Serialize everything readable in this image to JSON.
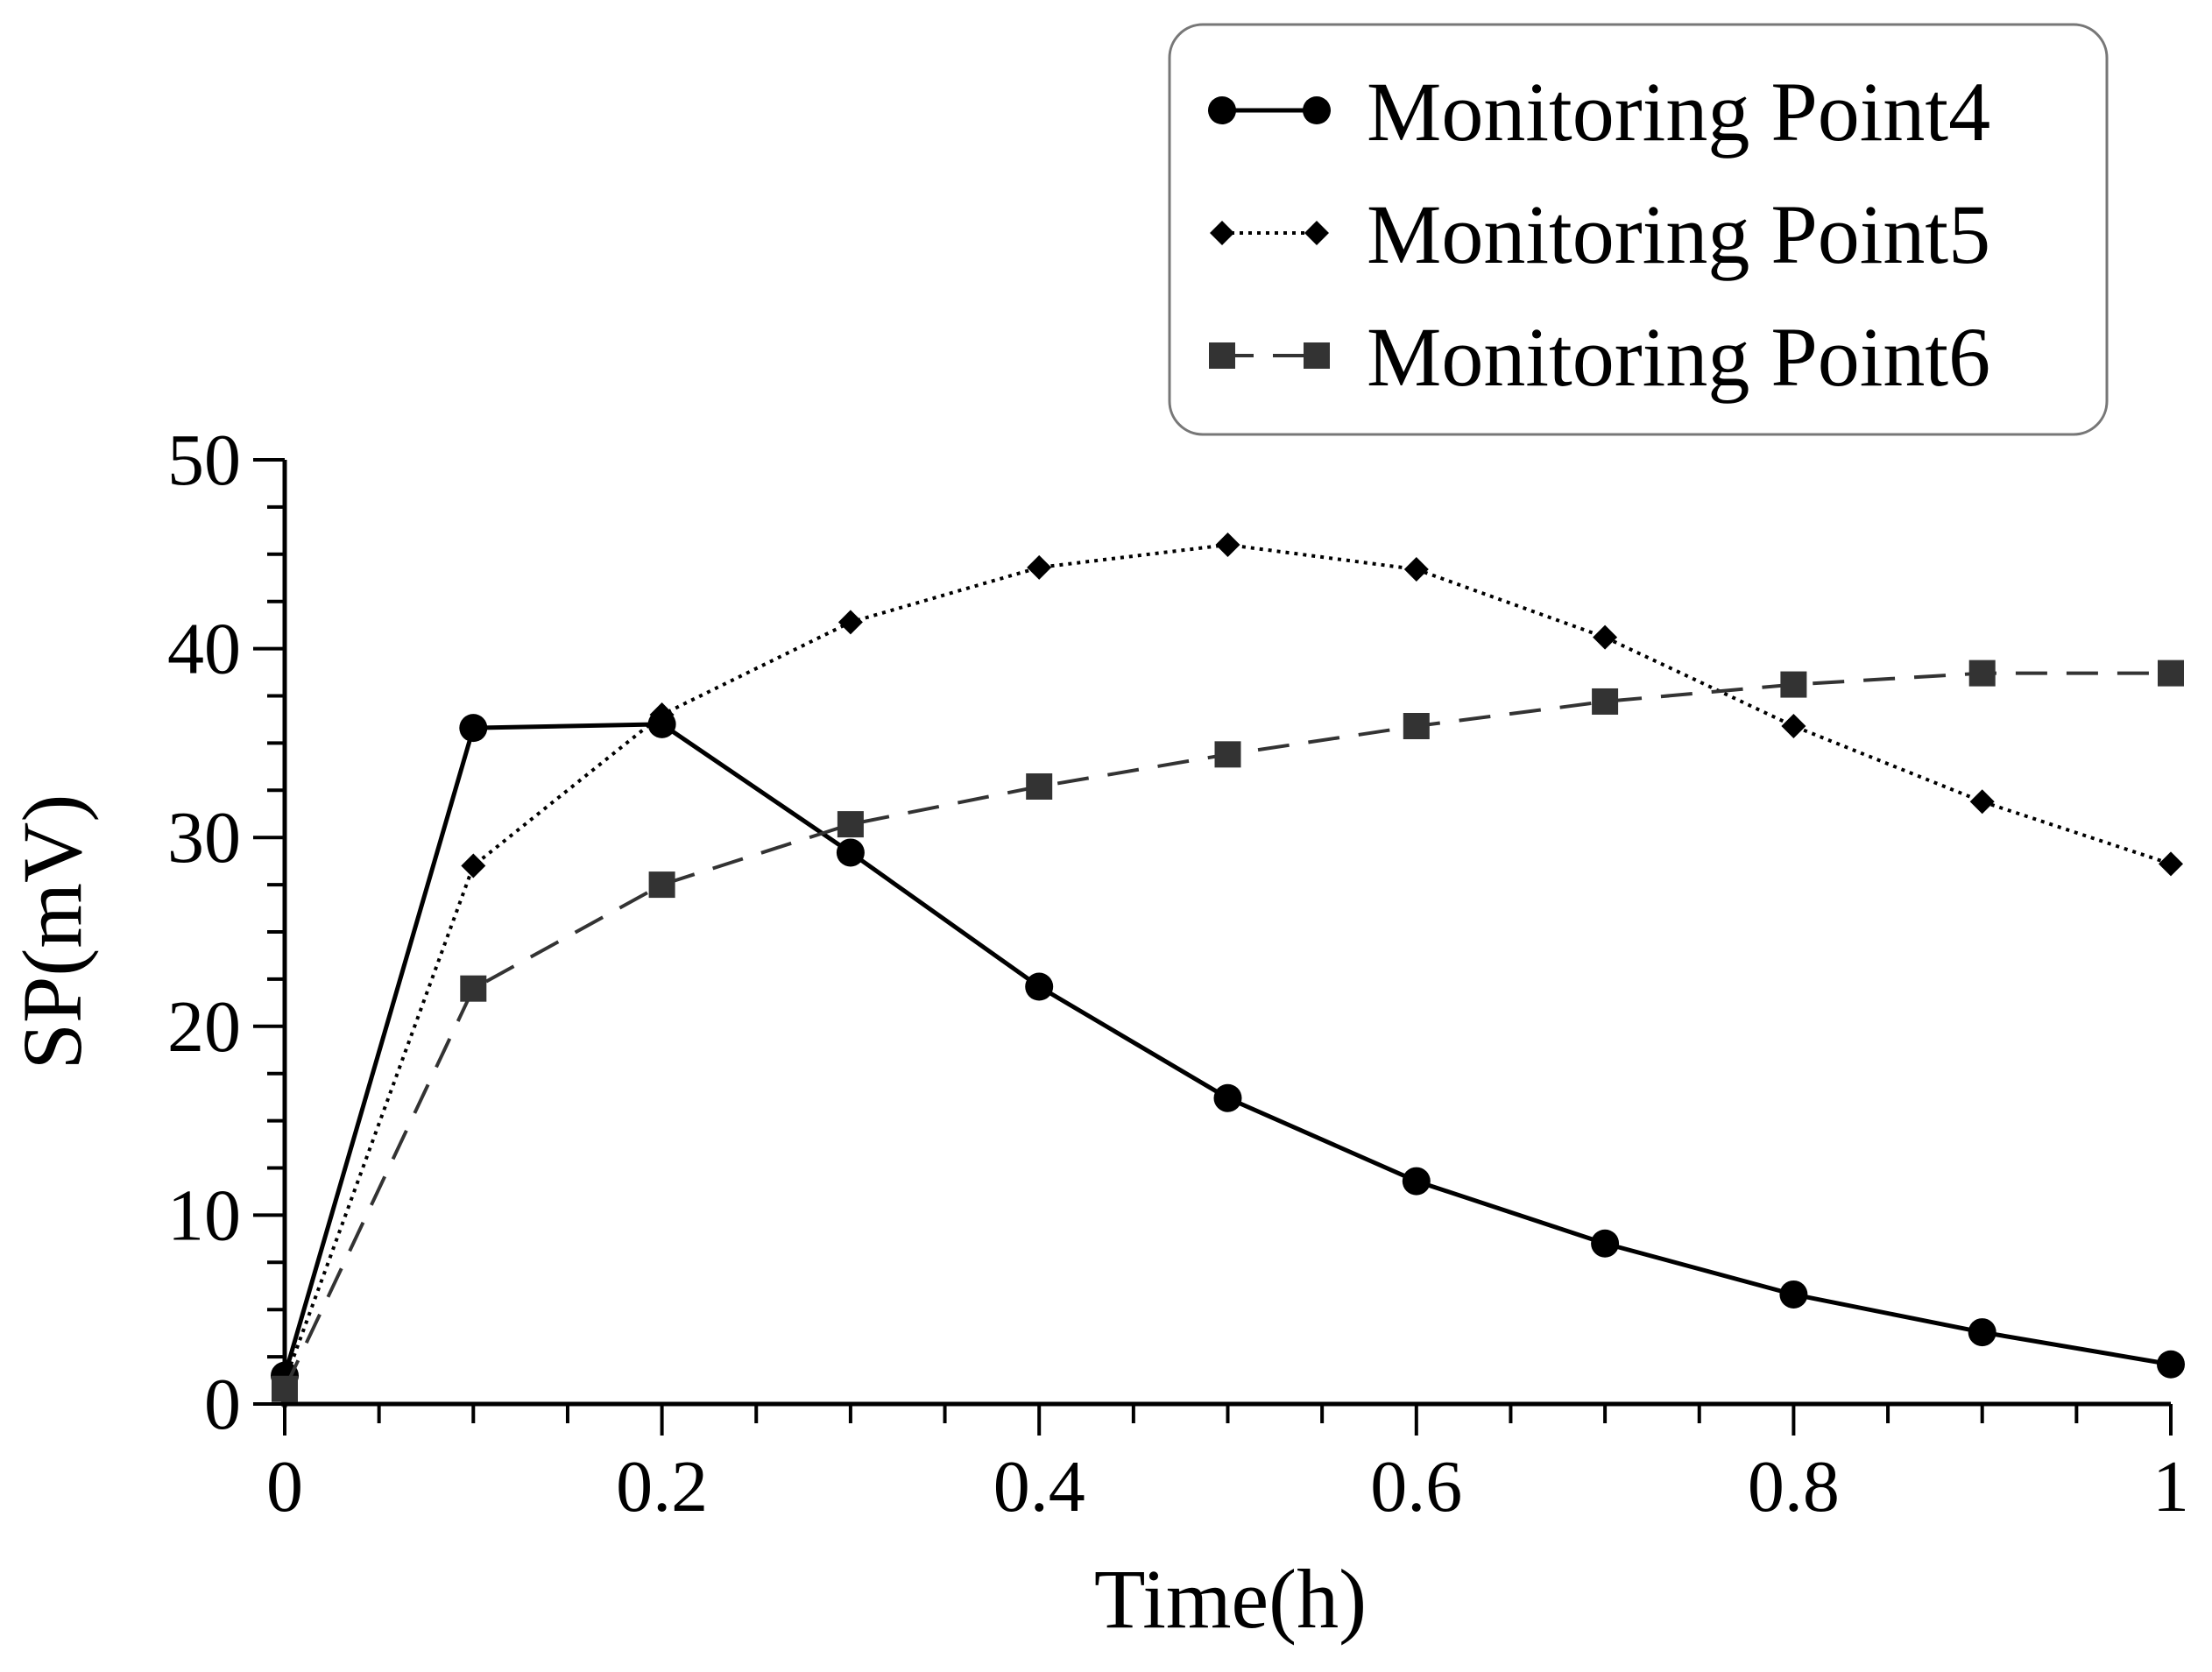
{
  "chart_data": {
    "type": "line",
    "title": "",
    "xlabel": "Time(h)",
    "ylabel": "SP(mV)",
    "xlim": [
      0,
      1
    ],
    "ylim": [
      0,
      50
    ],
    "x": [
      0,
      0.1,
      0.2,
      0.3,
      0.4,
      0.5,
      0.6,
      0.7,
      0.8,
      0.9,
      1.0
    ],
    "x_ticks": [
      0,
      0.2,
      0.4,
      0.6,
      0.8,
      1
    ],
    "x_tick_labels": [
      "0",
      "0.2",
      "0.4",
      "0.6",
      "0.8",
      "1"
    ],
    "y_ticks": [
      0,
      10,
      20,
      30,
      40,
      50
    ],
    "y_tick_labels": [
      "0",
      "10",
      "20",
      "30",
      "40",
      "50"
    ],
    "grid": false,
    "legend_position": "top-right",
    "series": [
      {
        "name": "Monitoring Point4",
        "marker": "circle",
        "line_style": "solid",
        "color": "#000000",
        "values": [
          1.5,
          35.8,
          36.0,
          29.2,
          22.1,
          16.2,
          11.8,
          8.5,
          5.8,
          3.8,
          2.1
        ]
      },
      {
        "name": "Monitoring Point5",
        "marker": "diamond",
        "line_style": "dotted",
        "color": "#000000",
        "values": [
          1.2,
          28.5,
          36.5,
          41.4,
          44.3,
          45.5,
          44.2,
          40.6,
          35.9,
          31.9,
          28.6
        ]
      },
      {
        "name": "Monitoring Point6",
        "marker": "square",
        "line_style": "dashed",
        "color": "#333333",
        "values": [
          0.8,
          22.0,
          27.5,
          30.7,
          32.7,
          34.4,
          35.9,
          37.2,
          38.1,
          38.7,
          38.7
        ]
      }
    ]
  }
}
